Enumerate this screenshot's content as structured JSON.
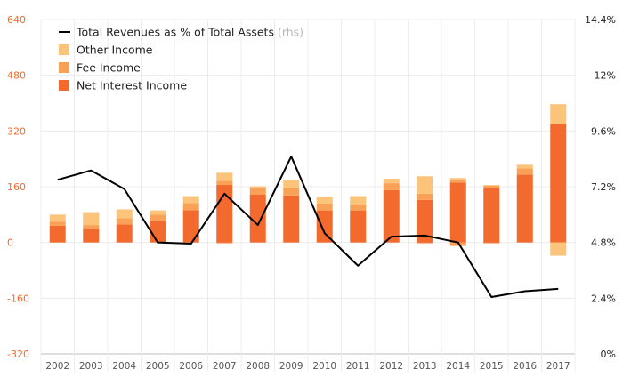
{
  "chart_data": {
    "type": "bar",
    "categories": [
      "2002",
      "2003",
      "2004",
      "2005",
      "2006",
      "2007",
      "2008",
      "2009",
      "2010",
      "2011",
      "2012",
      "2013",
      "2014",
      "2015",
      "2016",
      "2017"
    ],
    "series": [
      {
        "name": "Net Interest Income",
        "kind": "bar",
        "axis": "left",
        "color": "#f26a2e",
        "values": [
          48,
          38,
          52,
          62,
          93,
          165,
          137,
          135,
          92,
          92,
          150,
          122,
          172,
          155,
          195,
          340
        ]
      },
      {
        "name": "Fee Income",
        "kind": "bar",
        "axis": "left",
        "color": "#f9a156",
        "values": [
          12,
          12,
          18,
          18,
          20,
          12,
          20,
          20,
          20,
          17,
          20,
          18,
          8,
          8,
          18,
          0
        ]
      },
      {
        "name": "Other Income",
        "kind": "bar",
        "axis": "left",
        "color": "#fbc47a",
        "values": [
          20,
          37,
          25,
          12,
          20,
          23,
          4,
          23,
          20,
          24,
          13,
          50,
          5,
          2,
          10,
          57
        ]
      },
      {
        "name": "Net Interest Income (negative)",
        "kind": "bar",
        "axis": "left",
        "color": "#f26a2e",
        "values": [
          0,
          0,
          0,
          0,
          0,
          -2,
          0,
          0,
          0,
          0,
          0,
          -2,
          0,
          -2,
          0,
          0
        ]
      },
      {
        "name": "Fee Income (negative)",
        "kind": "bar",
        "axis": "left",
        "color": "#f9a156",
        "values": [
          0,
          0,
          0,
          0,
          0,
          0,
          0,
          0,
          0,
          0,
          0,
          0,
          -10,
          0,
          0,
          0
        ]
      },
      {
        "name": "Other Income (negative)",
        "kind": "bar",
        "axis": "left",
        "color": "#fbc47a",
        "values": [
          0,
          0,
          0,
          0,
          0,
          0,
          0,
          0,
          0,
          0,
          0,
          0,
          0,
          0,
          0,
          -38
        ]
      },
      {
        "name": "Total Revenues as % of Total Assets",
        "kind": "line",
        "axis": "right",
        "color": "#000000",
        "values": [
          7.5,
          7.9,
          7.1,
          4.8,
          4.75,
          6.9,
          5.55,
          8.5,
          5.2,
          3.8,
          5.05,
          5.1,
          4.8,
          2.45,
          2.7,
          2.8
        ]
      }
    ],
    "legend": [
      {
        "label": "Total Revenues as % of Total Assets",
        "suffix": "(rhs)",
        "symbol": "line",
        "color": "#000000"
      },
      {
        "label": "Other Income",
        "symbol": "box",
        "color": "#fbc47a"
      },
      {
        "label": "Fee Income",
        "symbol": "box",
        "color": "#f9a156"
      },
      {
        "label": "Net Interest Income",
        "symbol": "box",
        "color": "#f26a2e"
      }
    ],
    "y_left": {
      "ylim": [
        -320,
        640
      ],
      "ticks": [
        "640",
        "480",
        "320",
        "160",
        "0",
        "-160",
        "-320"
      ],
      "color": "#f26a2e"
    },
    "y_right": {
      "ylim": [
        0,
        14.4
      ],
      "ticks": [
        "14.4%",
        "12%",
        "9.6%",
        "7.2%",
        "4.8%",
        "2.4%",
        "0%"
      ]
    },
    "grid": true,
    "legend_position": "top-left"
  }
}
